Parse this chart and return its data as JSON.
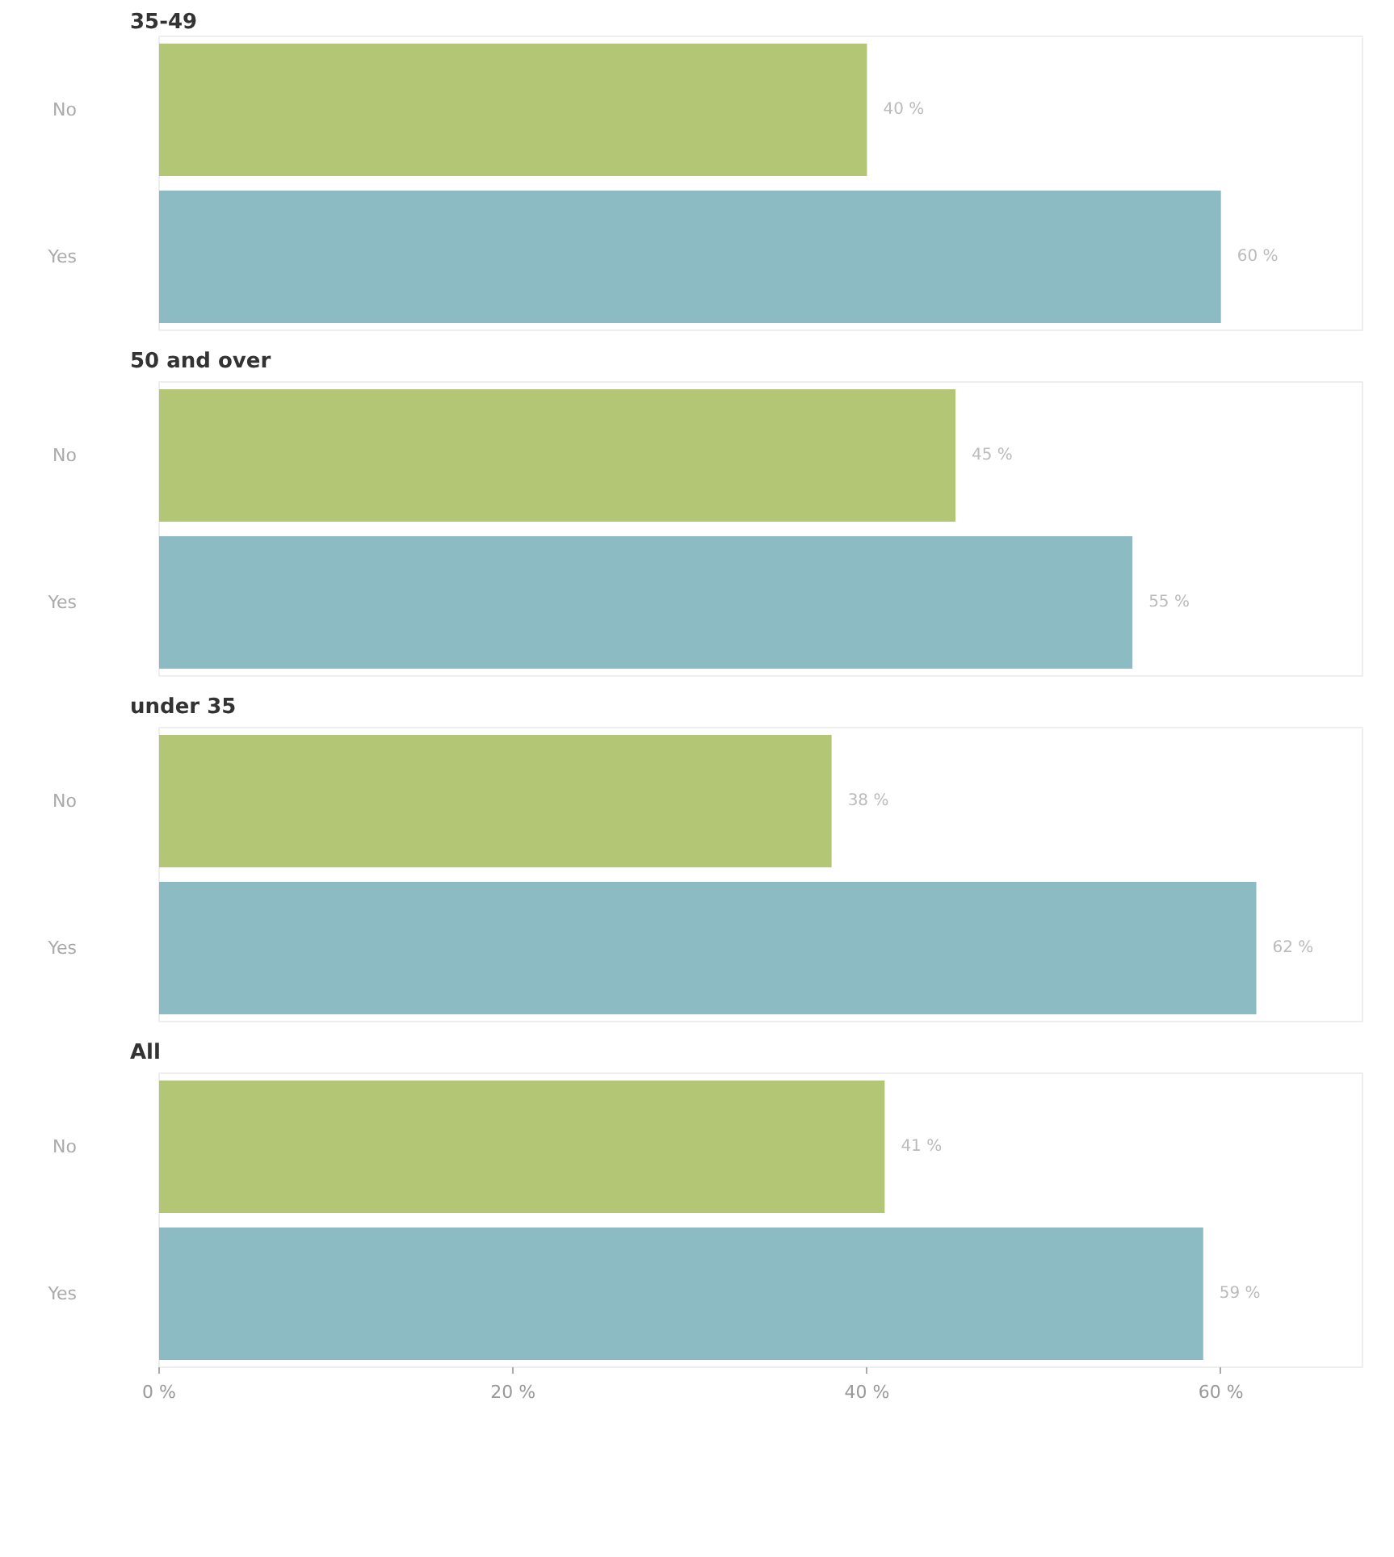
{
  "chart_data": [
    {
      "type": "bar",
      "orientation": "horizontal",
      "title": "35-49",
      "categories": [
        "No",
        "Yes"
      ],
      "values": [
        40,
        60
      ],
      "colors": [
        "#b3c676",
        "#8cbbc4"
      ],
      "value_labels": [
        "40 %",
        "60 %"
      ],
      "xlim": [
        0,
        68
      ],
      "tick_labels": "y"
    },
    {
      "type": "bar",
      "orientation": "horizontal",
      "title": "50 and over",
      "categories": [
        "No",
        "Yes"
      ],
      "values": [
        45,
        55
      ],
      "colors": [
        "#b3c676",
        "#8cbbc4"
      ],
      "value_labels": [
        "45 %",
        "55 %"
      ],
      "xlim": [
        0,
        68
      ],
      "tick_labels": "y"
    },
    {
      "type": "bar",
      "orientation": "horizontal",
      "title": "under 35",
      "categories": [
        "No",
        "Yes"
      ],
      "values": [
        38,
        62
      ],
      "colors": [
        "#b3c676",
        "#8cbbc4"
      ],
      "value_labels": [
        "38 %",
        "62 %"
      ],
      "xlim": [
        0,
        68
      ],
      "tick_labels": "y"
    },
    {
      "type": "bar",
      "orientation": "horizontal",
      "title": "All",
      "categories": [
        "No",
        "Yes"
      ],
      "values": [
        41,
        59
      ],
      "colors": [
        "#b3c676",
        "#8cbbc4"
      ],
      "value_labels": [
        "41 %",
        "59 %"
      ],
      "xlim": [
        0,
        68
      ],
      "xticks": [
        {
          "value": 0,
          "label": "0 %"
        },
        {
          "value": 20,
          "label": "20 %"
        },
        {
          "value": 40,
          "label": "40 %"
        },
        {
          "value": 60,
          "label": "60 %"
        }
      ]
    }
  ]
}
